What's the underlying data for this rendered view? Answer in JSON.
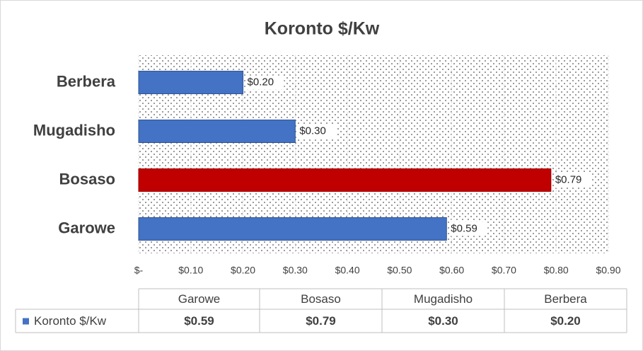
{
  "chart_data": {
    "type": "bar",
    "orientation": "horizontal",
    "title": "Koronto $/Kw",
    "categories": [
      "Garowe",
      "Bosaso",
      "Mugadisho",
      "Berbera"
    ],
    "series": [
      {
        "name": "Koronto $/Kw",
        "color": "#4472c4",
        "point_colors": [
          "#4472c4",
          "#c00000",
          "#4472c4",
          "#4472c4"
        ],
        "values": [
          0.59,
          0.79,
          0.3,
          0.2
        ],
        "value_labels": [
          "$0.59",
          "$0.79",
          "$0.30",
          "$0.20"
        ]
      }
    ],
    "xlim": [
      0,
      0.9
    ],
    "xticks": [
      {
        "value": 0,
        "label": "$-"
      },
      {
        "value": 0.1,
        "label": "$0.10"
      },
      {
        "value": 0.2,
        "label": "$0.20"
      },
      {
        "value": 0.3,
        "label": "$0.30"
      },
      {
        "value": 0.4,
        "label": "$0.40"
      },
      {
        "value": 0.5,
        "label": "$0.50"
      },
      {
        "value": 0.6,
        "label": "$0.60"
      },
      {
        "value": 0.7,
        "label": "$0.70"
      },
      {
        "value": 0.8,
        "label": "$0.80"
      },
      {
        "value": 0.9,
        "label": "$0.90"
      }
    ],
    "grid": true,
    "data_table": true
  }
}
